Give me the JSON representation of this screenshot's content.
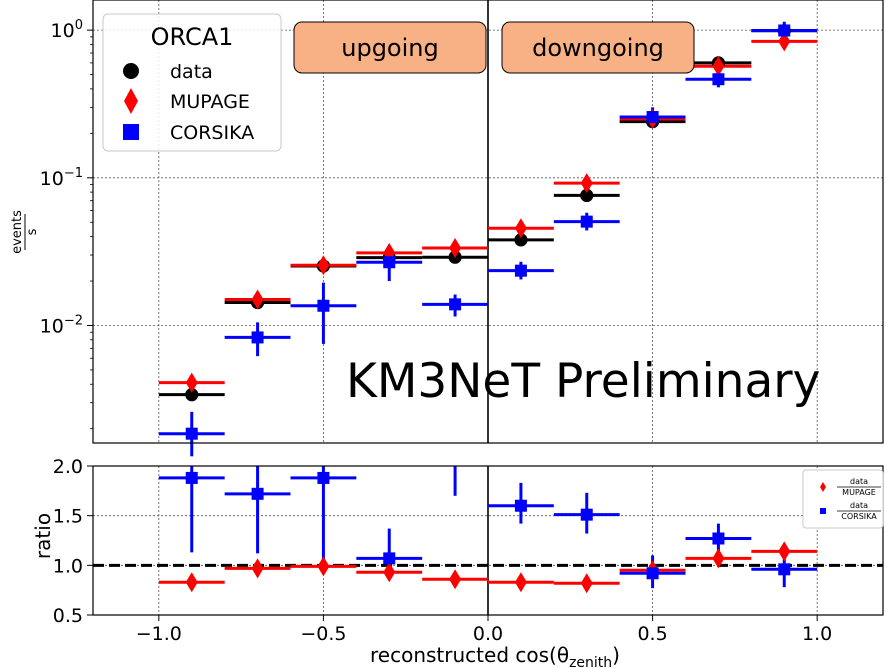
{
  "chart_data": [
    {
      "type": "scatter",
      "panel": "top",
      "ylabel_num": "events",
      "ylabel_den": "s",
      "yscale": "log",
      "xlim": [
        -1.2,
        1.2
      ],
      "ylim": [
        0.0016,
        1.6
      ],
      "yticks": [
        {
          "value": 0.01,
          "label": "10",
          "exp": "−2"
        },
        {
          "value": 0.1,
          "label": "10",
          "exp": "−1"
        },
        {
          "value": 1.0,
          "label": "10",
          "exp": "0"
        }
      ],
      "grid": true,
      "legend": {
        "title": "ORCA1",
        "placement": "top-left",
        "entries": [
          "data",
          "MUPAGE",
          "CORSIKA"
        ]
      },
      "bin_edges": [
        -1.0,
        -0.8,
        -0.6,
        -0.4,
        -0.2,
        0.0,
        0.2,
        0.4,
        0.6,
        0.8,
        1.0
      ],
      "bin_centers": [
        -0.9,
        -0.7,
        -0.5,
        -0.3,
        -0.1,
        0.1,
        0.3,
        0.5,
        0.7,
        0.9
      ],
      "series": [
        {
          "name": "data",
          "color": "#000000",
          "marker": "circle",
          "values": [
            0.0034,
            0.0143,
            0.0253,
            0.0288,
            0.029,
            0.038,
            0.076,
            0.24,
            0.6,
            0.99
          ],
          "err": [
            0,
            0,
            0,
            0,
            0,
            0,
            0,
            0,
            0,
            0
          ]
        },
        {
          "name": "MUPAGE",
          "color": "#ff0000",
          "marker": "diamond",
          "values": [
            0.0041,
            0.015,
            0.0256,
            0.031,
            0.0335,
            0.0455,
            0.092,
            0.25,
            0.57,
            0.84
          ],
          "err": [
            0,
            0,
            0,
            0,
            0,
            0,
            0,
            0,
            0,
            0
          ]
        },
        {
          "name": "CORSIKA",
          "color": "#0000ff",
          "marker": "square",
          "lo": [
            0.0013,
            0.0062,
            0.0075,
            0.02,
            0.0115,
            0.0205,
            0.044,
            0.22,
            0.41,
            0.88
          ],
          "values": [
            0.00185,
            0.0083,
            0.0136,
            0.0268,
            0.0139,
            0.0235,
            0.0505,
            0.258,
            0.465,
            0.995
          ],
          "hi": [
            0.0026,
            0.0105,
            0.0195,
            0.031,
            0.0162,
            0.027,
            0.058,
            0.3,
            0.53,
            1.14
          ]
        }
      ],
      "labels": {
        "upgoing": "upgoing",
        "downgoing": "downgoing",
        "watermark": "KM3NeT Preliminary"
      },
      "label_box_color": "#f8b184"
    },
    {
      "type": "scatter",
      "panel": "bottom",
      "ylabel": "ratio",
      "xlabel": "reconstructed cos(θ",
      "xlabel_sub": "zenith",
      "xlabel_end": ")",
      "xlim": [
        -1.2,
        1.2
      ],
      "ylim": [
        0.5,
        2.0
      ],
      "xticks": [
        {
          "value": -1.0,
          "label": "−1.0"
        },
        {
          "value": -0.5,
          "label": "−0.5"
        },
        {
          "value": 0.0,
          "label": "0.0"
        },
        {
          "value": 0.5,
          "label": "0.5"
        },
        {
          "value": 1.0,
          "label": "1.0"
        }
      ],
      "yticks": [
        {
          "value": 0.5,
          "label": "0.5"
        },
        {
          "value": 1.0,
          "label": "1.0"
        },
        {
          "value": 1.5,
          "label": "1.5"
        },
        {
          "value": 2.0,
          "label": "2.0"
        }
      ],
      "reference_line": 1.0,
      "grid": true,
      "legend": {
        "placement": "top-right",
        "entries": [
          {
            "num": "data",
            "den": "MUPAGE"
          },
          {
            "num": "data",
            "den": "CORSIKA"
          }
        ]
      },
      "bin_edges": [
        -1.0,
        -0.8,
        -0.6,
        -0.4,
        -0.2,
        0.0,
        0.2,
        0.4,
        0.6,
        0.8,
        1.0
      ],
      "bin_centers": [
        -0.9,
        -0.7,
        -0.5,
        -0.3,
        -0.1,
        0.1,
        0.3,
        0.5,
        0.7,
        0.9
      ],
      "series": [
        {
          "name": "data/MUPAGE",
          "color": "#ff0000",
          "marker": "diamond",
          "values": [
            0.83,
            0.97,
            0.99,
            0.93,
            0.86,
            0.83,
            0.82,
            0.95,
            1.07,
            1.14
          ],
          "err": [
            0,
            0,
            0,
            0,
            0,
            0,
            0,
            0,
            0,
            0
          ]
        },
        {
          "name": "data/CORSIKA",
          "color": "#0000ff",
          "marker": "square",
          "values": [
            1.88,
            1.72,
            1.88,
            1.07,
            null,
            1.6,
            1.51,
            0.92,
            1.27,
            0.96
          ],
          "lo": [
            1.13,
            1.12,
            1.02,
            0.93,
            1.7,
            1.42,
            1.32,
            0.77,
            1.14,
            0.78
          ],
          "hi": [
            2.0,
            2.0,
            2.0,
            1.37,
            2.0,
            1.83,
            1.73,
            1.1,
            1.42,
            1.07
          ]
        }
      ]
    }
  ]
}
